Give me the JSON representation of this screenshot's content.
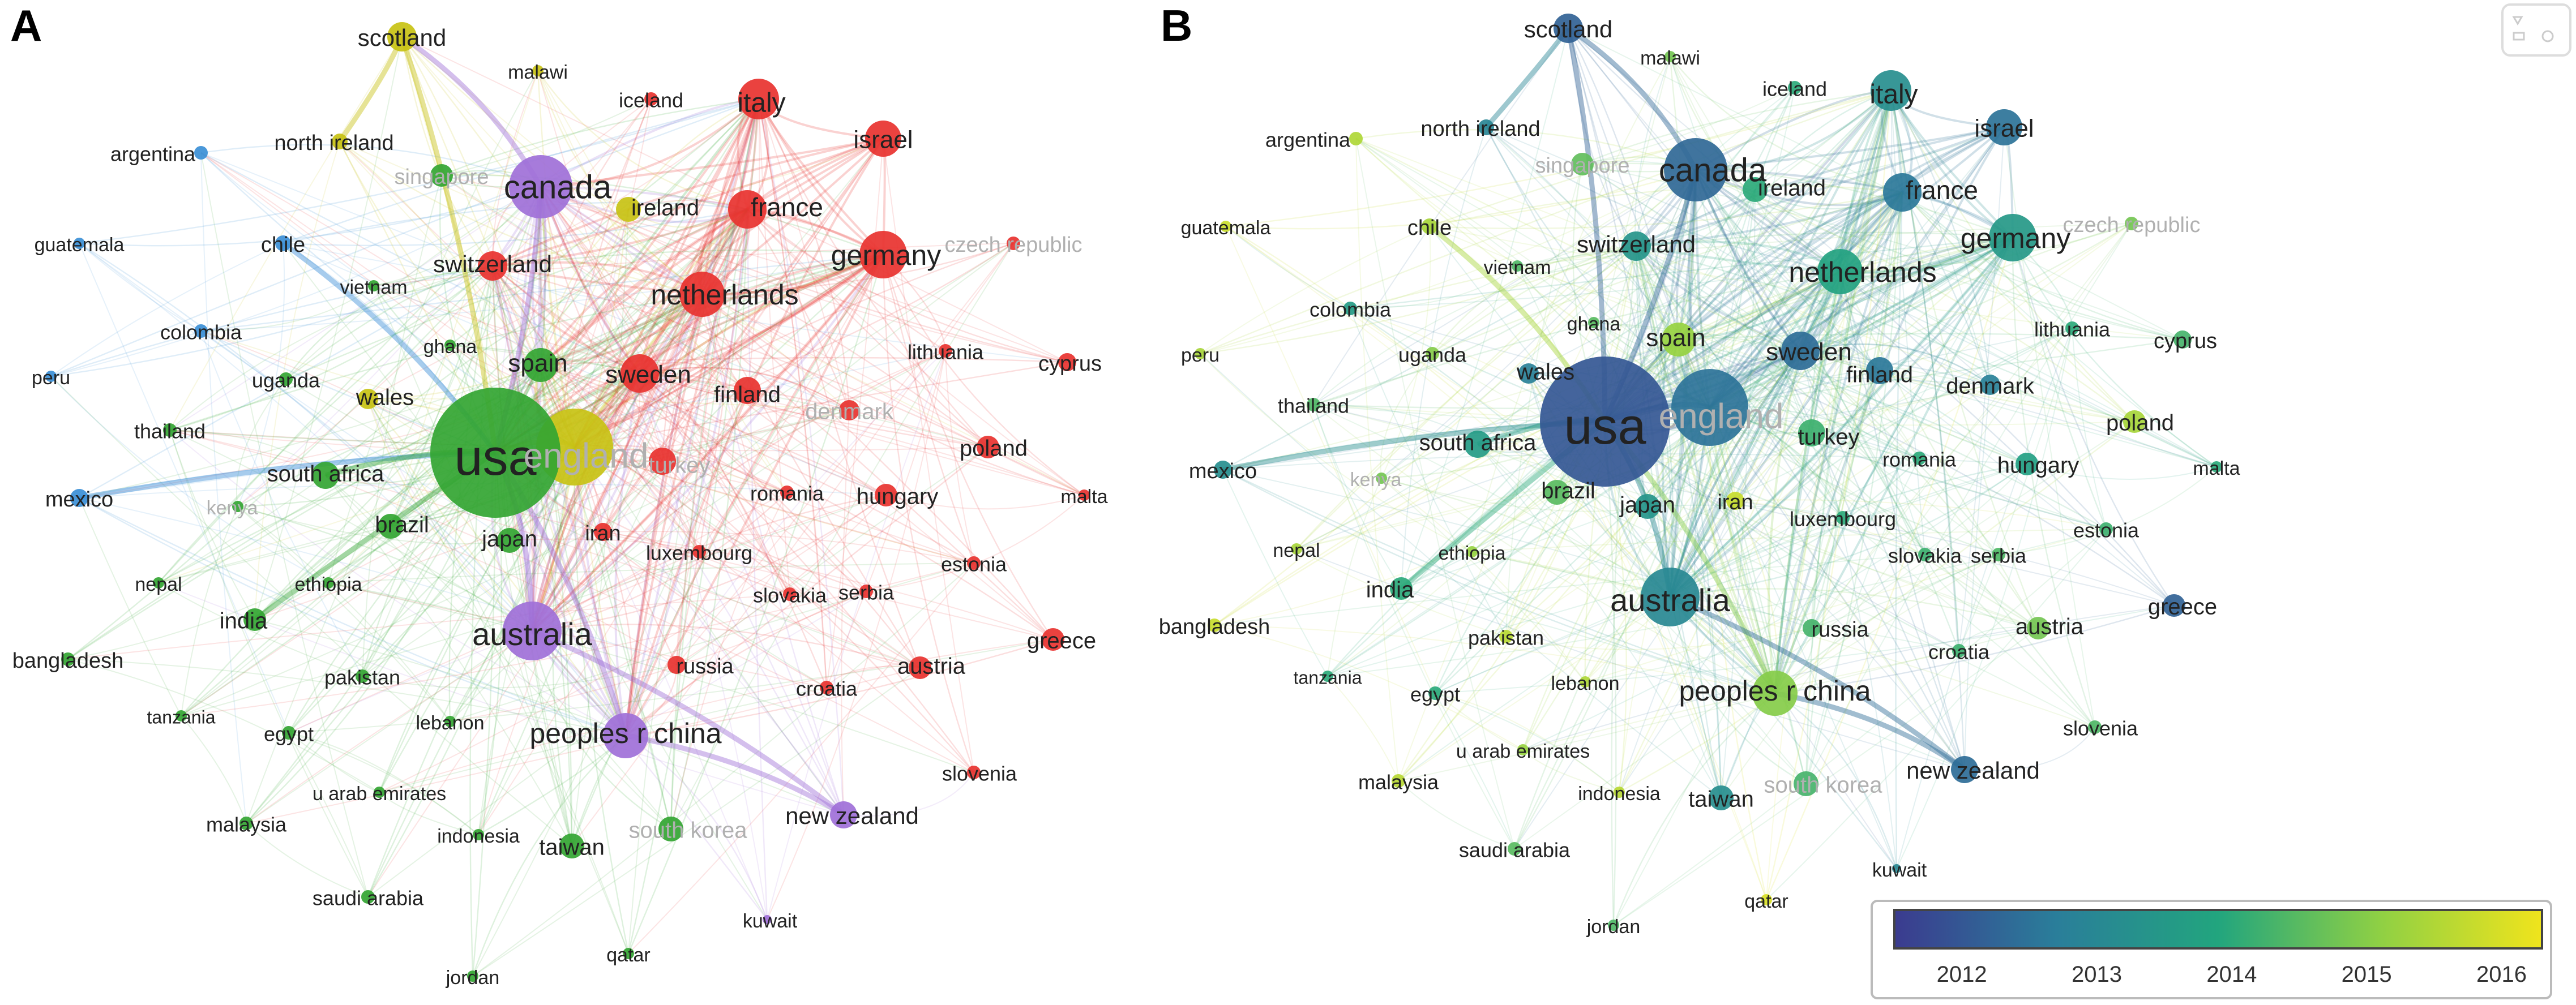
{
  "panels": [
    {
      "letter": "A",
      "mode": "cluster"
    },
    {
      "letter": "B",
      "mode": "overlay"
    }
  ],
  "colors": {
    "cluster_red": "#e8322f",
    "cluster_green": "#33a532",
    "cluster_blue": "#3b8fd6",
    "cluster_yellow": "#c8c214",
    "cluster_purple": "#a070d8",
    "overlay_scale": [
      "#3b3b8f",
      "#2a7e9a",
      "#22a57e",
      "#8fd044",
      "#f0e41c"
    ]
  },
  "colorbar": {
    "ticks": [
      "2012",
      "2013",
      "2014",
      "2015",
      "2016"
    ],
    "min": 2011.5,
    "max": 2016.3
  },
  "nodes": [
    {
      "label": "usa",
      "cluster": "green",
      "year": 2012.0,
      "size": 115,
      "fs": 90
    },
    {
      "label": "england",
      "cluster": "yellow",
      "year": 2012.5,
      "size": 68,
      "fs": 62,
      "faint": true
    },
    {
      "label": "canada",
      "cluster": "purple",
      "year": 2012.3,
      "size": 56,
      "fs": 58
    },
    {
      "label": "australia",
      "cluster": "purple",
      "year": 2013.0,
      "size": 52,
      "fs": 56
    },
    {
      "label": "peoples r china",
      "cluster": "purple",
      "year": 2015.0,
      "size": 40,
      "fs": 50
    },
    {
      "label": "germany",
      "cluster": "red",
      "year": 2013.5,
      "size": 42,
      "fs": 50
    },
    {
      "label": "netherlands",
      "cluster": "red",
      "year": 2013.8,
      "size": 40,
      "fs": 50
    },
    {
      "label": "italy",
      "cluster": "red",
      "year": 2013.2,
      "size": 36,
      "fs": 48
    },
    {
      "label": "france",
      "cluster": "red",
      "year": 2012.6,
      "size": 34,
      "fs": 46
    },
    {
      "label": "sweden",
      "cluster": "red",
      "year": 2012.4,
      "size": 34,
      "fs": 44
    },
    {
      "label": "spain",
      "cluster": "green",
      "year": 2015.2,
      "size": 30,
      "fs": 44
    },
    {
      "label": "israel",
      "cluster": "red",
      "year": 2012.5,
      "size": 32,
      "fs": 44
    },
    {
      "label": "switzerland",
      "cluster": "red",
      "year": 2013.4,
      "size": 26,
      "fs": 42
    },
    {
      "label": "scotland",
      "cluster": "yellow",
      "year": 2012.2,
      "size": 26,
      "fs": 42
    },
    {
      "label": "new zealand",
      "cluster": "purple",
      "year": 2012.4,
      "size": 24,
      "fs": 42
    },
    {
      "label": "ireland",
      "cluster": "yellow",
      "year": 2014.0,
      "size": 22,
      "fs": 40
    },
    {
      "label": "finland",
      "cluster": "red",
      "year": 2012.6,
      "size": 24,
      "fs": 40
    },
    {
      "label": "south africa",
      "cluster": "green",
      "year": 2013.6,
      "size": 24,
      "fs": 40
    },
    {
      "label": "brazil",
      "cluster": "green",
      "year": 2014.5,
      "size": 22,
      "fs": 40
    },
    {
      "label": "japan",
      "cluster": "green",
      "year": 2013.4,
      "size": 22,
      "fs": 40
    },
    {
      "label": "turkey",
      "cluster": "red",
      "year": 2014.2,
      "size": 24,
      "fs": 40,
      "faintA": true
    },
    {
      "label": "taiwan",
      "cluster": "green",
      "year": 2013.2,
      "size": 22,
      "fs": 40
    },
    {
      "label": "wales",
      "cluster": "yellow",
      "year": 2012.8,
      "size": 18,
      "fs": 40
    },
    {
      "label": "india",
      "cluster": "green",
      "year": 2014.0,
      "size": 20,
      "fs": 40
    },
    {
      "label": "greece",
      "cluster": "red",
      "year": 2012.2,
      "size": 20,
      "fs": 40
    },
    {
      "label": "austria",
      "cluster": "red",
      "year": 2014.8,
      "size": 20,
      "fs": 40
    },
    {
      "label": "hungary",
      "cluster": "red",
      "year": 2013.7,
      "size": 20,
      "fs": 40
    },
    {
      "label": "poland",
      "cluster": "red",
      "year": 2015.4,
      "size": 20,
      "fs": 40
    },
    {
      "label": "cyprus",
      "cluster": "red",
      "year": 2014.3,
      "size": 16,
      "fs": 38
    },
    {
      "label": "denmark",
      "cluster": "red",
      "year": 2012.8,
      "size": 18,
      "fs": 40,
      "faintA": true
    },
    {
      "label": "iran",
      "cluster": "red",
      "year": 2015.8,
      "size": 16,
      "fs": 38
    },
    {
      "label": "russia",
      "cluster": "red",
      "year": 2014.3,
      "size": 16,
      "fs": 38
    },
    {
      "label": "south korea",
      "cluster": "green",
      "year": 2014.3,
      "size": 22,
      "fs": 40,
      "faint": true
    },
    {
      "label": "singapore",
      "cluster": "green",
      "year": 2014.6,
      "size": 20,
      "fs": 38,
      "faint": true
    },
    {
      "label": "mexico",
      "cluster": "blue",
      "year": 2013.2,
      "size": 16,
      "fs": 38
    },
    {
      "label": "chile",
      "cluster": "blue",
      "year": 2015.4,
      "size": 14,
      "fs": 38
    },
    {
      "label": "north ireland",
      "cluster": "yellow",
      "year": 2012.9,
      "size": 14,
      "fs": 38
    },
    {
      "label": "bangladesh",
      "cluster": "green",
      "year": 2015.8,
      "size": 12,
      "fs": 38
    },
    {
      "label": "argentina",
      "cluster": "blue",
      "year": 2015.5,
      "size": 12,
      "fs": 36
    },
    {
      "label": "colombia",
      "cluster": "blue",
      "year": 2013.6,
      "size": 12,
      "fs": 36
    },
    {
      "label": "guatemala",
      "cluster": "blue",
      "year": 2015.8,
      "size": 10,
      "fs": 34
    },
    {
      "label": "peru",
      "cluster": "blue",
      "year": 2015.4,
      "size": 10,
      "fs": 34
    },
    {
      "label": "thailand",
      "cluster": "green",
      "year": 2014.4,
      "size": 12,
      "fs": 36
    },
    {
      "label": "uganda",
      "cluster": "green",
      "year": 2015.0,
      "size": 12,
      "fs": 36
    },
    {
      "label": "ghana",
      "cluster": "green",
      "year": 2014.5,
      "size": 10,
      "fs": 34
    },
    {
      "label": "vietnam",
      "cluster": "green",
      "year": 2014.4,
      "size": 10,
      "fs": 34
    },
    {
      "label": "kenya",
      "cluster": "green",
      "year": 2014.8,
      "size": 10,
      "fs": 34,
      "faint": true
    },
    {
      "label": "nepal",
      "cluster": "green",
      "year": 2015.4,
      "size": 10,
      "fs": 34
    },
    {
      "label": "ethiopia",
      "cluster": "green",
      "year": 2015.2,
      "size": 10,
      "fs": 34
    },
    {
      "label": "pakistan",
      "cluster": "green",
      "year": 2015.6,
      "size": 12,
      "fs": 36
    },
    {
      "label": "tanzania",
      "cluster": "green",
      "year": 2014.0,
      "size": 10,
      "fs": 32
    },
    {
      "label": "egypt",
      "cluster": "green",
      "year": 2014.0,
      "size": 12,
      "fs": 36
    },
    {
      "label": "lebanon",
      "cluster": "green",
      "year": 2015.5,
      "size": 10,
      "fs": 34
    },
    {
      "label": "u arab emirates",
      "cluster": "green",
      "year": 2015.2,
      "size": 10,
      "fs": 34
    },
    {
      "label": "malaysia",
      "cluster": "green",
      "year": 2015.6,
      "size": 12,
      "fs": 36
    },
    {
      "label": "indonesia",
      "cluster": "green",
      "year": 2015.6,
      "size": 10,
      "fs": 34
    },
    {
      "label": "saudi arabia",
      "cluster": "green",
      "year": 2014.5,
      "size": 12,
      "fs": 36
    },
    {
      "label": "jordan",
      "cluster": "green",
      "year": 2014.4,
      "size": 10,
      "fs": 34
    },
    {
      "label": "qatar",
      "cluster": "green",
      "year": 2016.0,
      "size": 10,
      "fs": 34
    },
    {
      "label": "kuwait",
      "cluster": "purple",
      "year": 2013.0,
      "size": 8,
      "fs": 34
    },
    {
      "label": "malawi",
      "cluster": "yellow",
      "year": 2014.8,
      "size": 10,
      "fs": 34
    },
    {
      "label": "iceland",
      "cluster": "red",
      "year": 2014.0,
      "size": 12,
      "fs": 36
    },
    {
      "label": "czech republic",
      "cluster": "red",
      "year": 2014.8,
      "size": 12,
      "fs": 38,
      "faint": true
    },
    {
      "label": "lithuania",
      "cluster": "red",
      "year": 2014.0,
      "size": 12,
      "fs": 36
    },
    {
      "label": "romania",
      "cluster": "red",
      "year": 2014.0,
      "size": 12,
      "fs": 36
    },
    {
      "label": "luxembourg",
      "cluster": "red",
      "year": 2014.0,
      "size": 12,
      "fs": 36
    },
    {
      "label": "slovakia",
      "cluster": "red",
      "year": 2014.2,
      "size": 12,
      "fs": 36
    },
    {
      "label": "serbia",
      "cluster": "red",
      "year": 2014.4,
      "size": 12,
      "fs": 36
    },
    {
      "label": "estonia",
      "cluster": "red",
      "year": 2014.2,
      "size": 12,
      "fs": 36
    },
    {
      "label": "malta",
      "cluster": "red",
      "year": 2014.0,
      "size": 10,
      "fs": 34
    },
    {
      "label": "croatia",
      "cluster": "red",
      "year": 2014.2,
      "size": 12,
      "fs": 36
    },
    {
      "label": "slovenia",
      "cluster": "red",
      "year": 2014.4,
      "size": 12,
      "fs": 36
    }
  ]
}
